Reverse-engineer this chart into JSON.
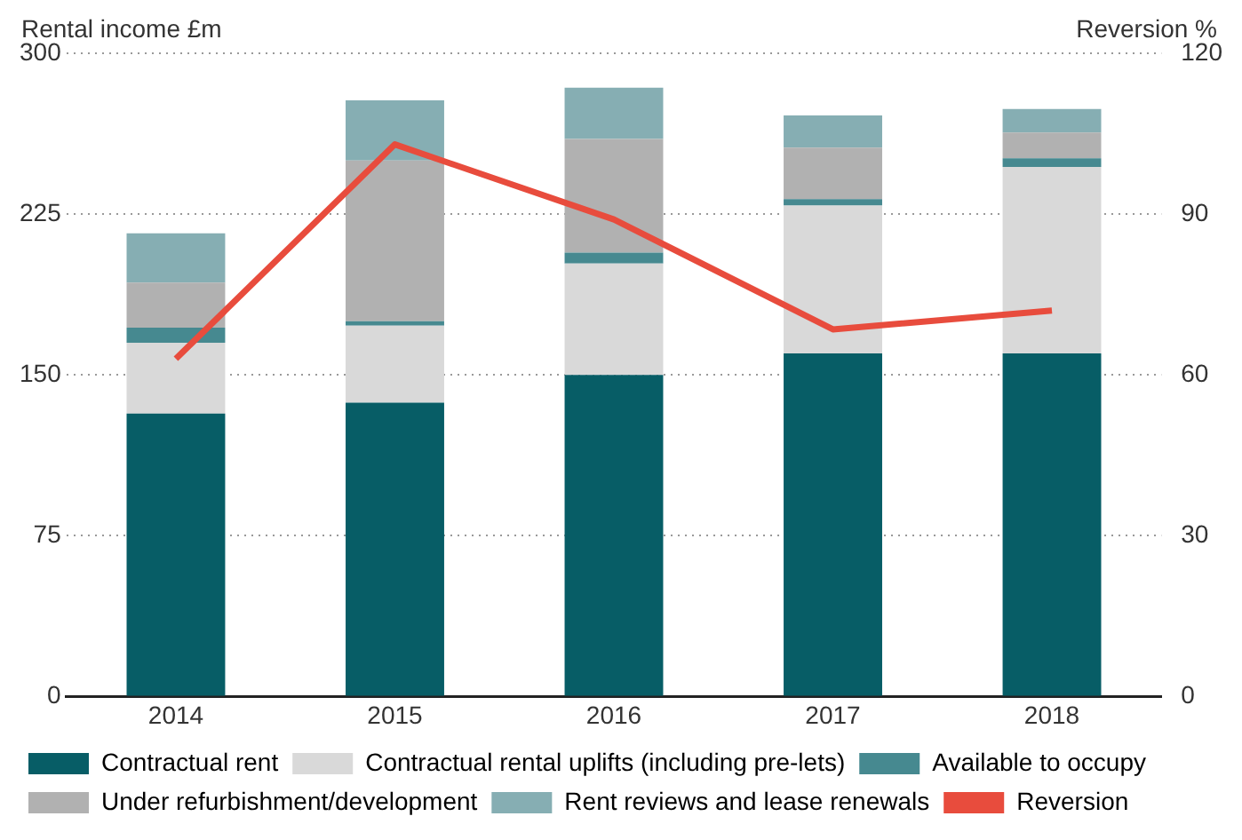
{
  "chart_data": {
    "type": "bar",
    "stacked": true,
    "ylabel": "Rental income £m",
    "y2label": "Reversion %",
    "categories": [
      "2014",
      "2015",
      "2016",
      "2017",
      "2018"
    ],
    "series": [
      {
        "name": "Contractual rent",
        "color": "#075d66",
        "values": [
          132,
          137,
          150,
          160,
          160
        ]
      },
      {
        "name": "Contractual rental uplifts (including pre-lets)",
        "color": "#d9d9d9",
        "values": [
          33,
          36,
          52,
          69,
          87
        ]
      },
      {
        "name": "Available to occupy",
        "color": "#468990",
        "values": [
          7,
          2,
          5,
          3,
          4
        ]
      },
      {
        "name": "Under refurbishment/development",
        "color": "#b1b1b1",
        "values": [
          21,
          75,
          53,
          24,
          12
        ]
      },
      {
        "name": "Rent reviews and lease renewals",
        "color": "#86aeb3",
        "values": [
          23,
          28,
          24,
          15,
          11
        ]
      },
      {
        "name": "Reversion",
        "type": "line",
        "axis": "y2",
        "color": "#e84c3d",
        "marker": "none",
        "values": [
          63,
          103,
          89,
          68.5,
          72
        ]
      }
    ],
    "ylim": [
      0,
      300
    ],
    "yticks": [
      0,
      75,
      150,
      225,
      300
    ],
    "y2lim": [
      0,
      120
    ],
    "y2ticks": [
      0,
      30,
      60,
      90,
      120
    ],
    "grid": "y",
    "legend": "bottom"
  }
}
